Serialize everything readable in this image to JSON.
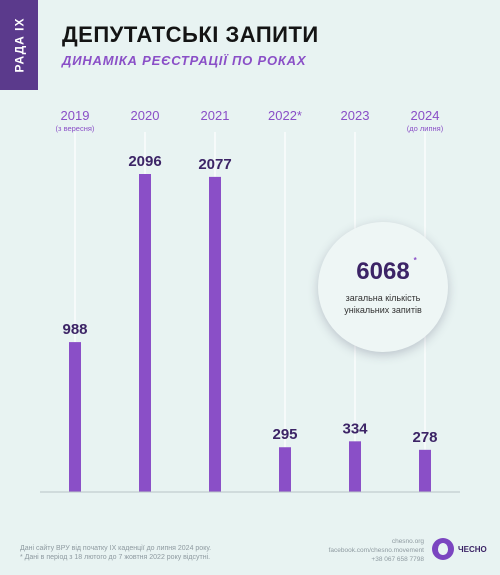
{
  "badge": "РАДА IX",
  "title": "ДЕПУТАТСЬКІ ЗАПИТИ",
  "subtitle": "ДИНАМІКА РЕЄСТРАЦІЇ ПО РОКАХ",
  "chart_data": {
    "type": "bar",
    "categories": [
      "2019",
      "2020",
      "2021",
      "2022*",
      "2023",
      "2024"
    ],
    "sublabels": [
      "(з вересня)",
      "",
      "",
      "",
      "",
      "(до липня)"
    ],
    "values": [
      988,
      2096,
      2077,
      295,
      334,
      278
    ],
    "ylim": [
      0,
      2096
    ],
    "grid": false,
    "colors": {
      "bar": "#8a4fc7",
      "label": "#3c2466",
      "year": "#8a4fc7",
      "gridline": "#ffffff",
      "axis": "#b9c3c5"
    }
  },
  "summary": {
    "value": "6068",
    "footnote_mark": "*",
    "caption_line1": "загальна кількість",
    "caption_line2": "унікальних запитів"
  },
  "notes": {
    "line1": "Дані сайту ВРУ від початку IX каденції до липня 2024 року.",
    "line2": "*  Дані в період з 18 лютого до 7 жовтня 2022 року відсутні."
  },
  "contacts": {
    "site": "chesno.org",
    "facebook": "facebook.com/chesno.movement",
    "phone": "+38 067 658 7798"
  },
  "logo": {
    "text": "ЧЕСНО",
    "icon": "garlic-icon"
  }
}
